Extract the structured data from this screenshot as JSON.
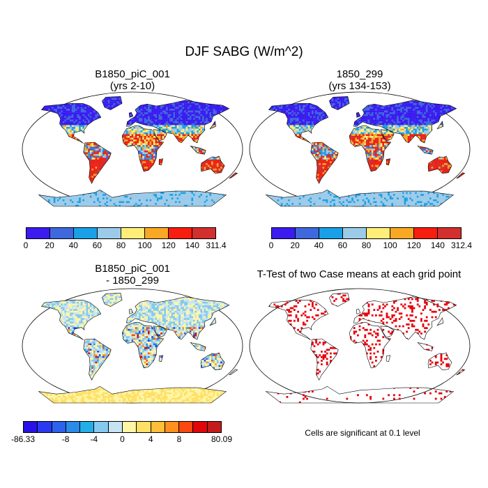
{
  "title": "DJF SABG (W/m^2)",
  "panels": [
    {
      "id": "top-left",
      "title_line1": "B1850_piC_001",
      "title_line2": "(yrs 2-10)"
    },
    {
      "id": "top-right",
      "title_line1": "1850_299",
      "title_line2": "(yrs 134-153)"
    },
    {
      "id": "bottom-left",
      "title_line1": "B1850_piC_001",
      "title_line2": "- 1850_299"
    },
    {
      "id": "bottom-right",
      "title_line1": "T-Test of two Case means at each grid point",
      "title_line2": ""
    }
  ],
  "colorbar_top_left": {
    "colors": [
      "#3b1bf0",
      "#3f68de",
      "#1aa0e6",
      "#9ccbe9",
      "#ffee78",
      "#f9a823",
      "#f71d0f",
      "#d22f2f"
    ],
    "labels": [
      "0",
      "20",
      "40",
      "60",
      "80",
      "100",
      "120",
      "140",
      "311.4"
    ]
  },
  "colorbar_top_right": {
    "colors": [
      "#3b1bf0",
      "#3f68de",
      "#1aa0e6",
      "#9ccbe9",
      "#ffee78",
      "#f9a823",
      "#f71d0f",
      "#d22f2f"
    ],
    "labels": [
      "0",
      "20",
      "40",
      "60",
      "80",
      "100",
      "120",
      "140",
      "312.4"
    ]
  },
  "colorbar_diff": {
    "colors": [
      "#2812e6",
      "#2a3af0",
      "#2d62ec",
      "#2b8be9",
      "#23aee8",
      "#86c9ef",
      "#c5e4f3",
      "#fff6a6",
      "#ffe066",
      "#ffbe38",
      "#ff8f1f",
      "#f9490f",
      "#e1060a",
      "#c51b1b"
    ],
    "labels": [
      "-86.33",
      "-8",
      "-4",
      "0",
      "4",
      "8",
      "80.09"
    ]
  },
  "significance_note": "Cells are significant at 0.1 level",
  "map_colors": {
    "ocean": "#ffffff",
    "outline": "#000000",
    "significant": "#e8000b"
  }
}
